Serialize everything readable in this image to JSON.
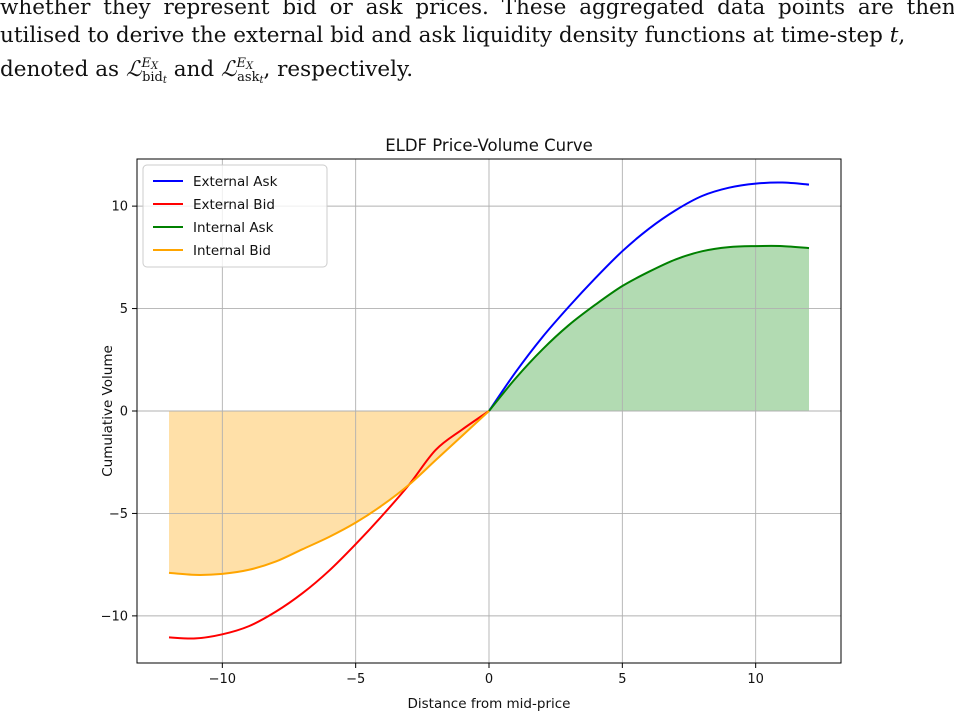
{
  "paragraph": {
    "line1": "whether they represent bid or ask prices.  These aggregated data points are then",
    "line2_pre": "utilised to derive the external bid and ask liquidity density functions at time-step ",
    "line2_var": "t",
    "line2_post": ",",
    "line3_pre": "denoted as ",
    "symbol_main": "ℒ",
    "symbol_sup": "E",
    "symbol_sup_sub": "X",
    "bid_sub": "bid",
    "ask_sub": "ask",
    "time_sub": "t",
    "line3_and": " and ",
    "line3_post": ", respectively."
  },
  "chart_data": {
    "type": "line",
    "title": "ELDF Price-Volume Curve",
    "xlabel": "Distance from mid-price",
    "ylabel": "Cumulative Volume",
    "xlim": [
      -13.2,
      13.2
    ],
    "ylim": [
      -12.3,
      12.3
    ],
    "xticks": [
      -10,
      -5,
      0,
      5,
      10
    ],
    "xtick_labels": [
      "−10",
      "−5",
      "0",
      "5",
      "10"
    ],
    "yticks": [
      -10,
      -5,
      0,
      5,
      10
    ],
    "ytick_labels": [
      "−10",
      "−5",
      "0",
      "5",
      "10"
    ],
    "grid": true,
    "legend_position": "upper-left",
    "x": [
      -12,
      -11,
      -10,
      -9,
      -8,
      -7,
      -6,
      -5,
      -4,
      -3,
      -2,
      -1,
      0,
      1,
      2,
      3,
      4,
      5,
      6,
      7,
      8,
      9,
      10,
      11,
      12
    ],
    "series": [
      {
        "name": "External Ask",
        "color": "#0000ff",
        "domain": "positive",
        "x": [
          0,
          1,
          2,
          3,
          4,
          5,
          6,
          7,
          8,
          9,
          10,
          11,
          12
        ],
        "values": [
          0,
          1.9,
          3.6,
          5.1,
          6.5,
          7.8,
          8.9,
          9.8,
          10.5,
          10.9,
          11.1,
          11.15,
          11.05
        ]
      },
      {
        "name": "External Bid",
        "color": "#ff0000",
        "domain": "negative",
        "x": [
          -12,
          -11,
          -10,
          -9,
          -8,
          -7,
          -6,
          -5,
          -4,
          -3,
          -2,
          -1,
          0
        ],
        "values": [
          -11.05,
          -11.1,
          -10.9,
          -10.5,
          -9.8,
          -8.9,
          -7.8,
          -6.5,
          -5.1,
          -3.6,
          -1.9,
          -0.9,
          0
        ]
      },
      {
        "name": "Internal Ask",
        "color": "#008000",
        "domain": "positive",
        "fill": "#b2dbb2",
        "x": [
          0,
          1,
          2,
          3,
          4,
          5,
          6,
          7,
          8,
          9,
          10,
          11,
          12
        ],
        "values": [
          0,
          1.6,
          3.0,
          4.2,
          5.2,
          6.1,
          6.8,
          7.4,
          7.8,
          8.0,
          8.05,
          8.05,
          7.95
        ]
      },
      {
        "name": "Internal Bid",
        "color": "#ffa500",
        "domain": "negative",
        "fill": "#ffe0a8",
        "x": [
          -12,
          -11,
          -10,
          -9,
          -8,
          -7,
          -6,
          -5,
          -4,
          -3,
          -2,
          -1,
          0
        ],
        "values": [
          -7.9,
          -8.0,
          -7.95,
          -7.75,
          -7.35,
          -6.75,
          -6.15,
          -5.45,
          -4.6,
          -3.6,
          -2.4,
          -1.2,
          0
        ]
      }
    ]
  }
}
